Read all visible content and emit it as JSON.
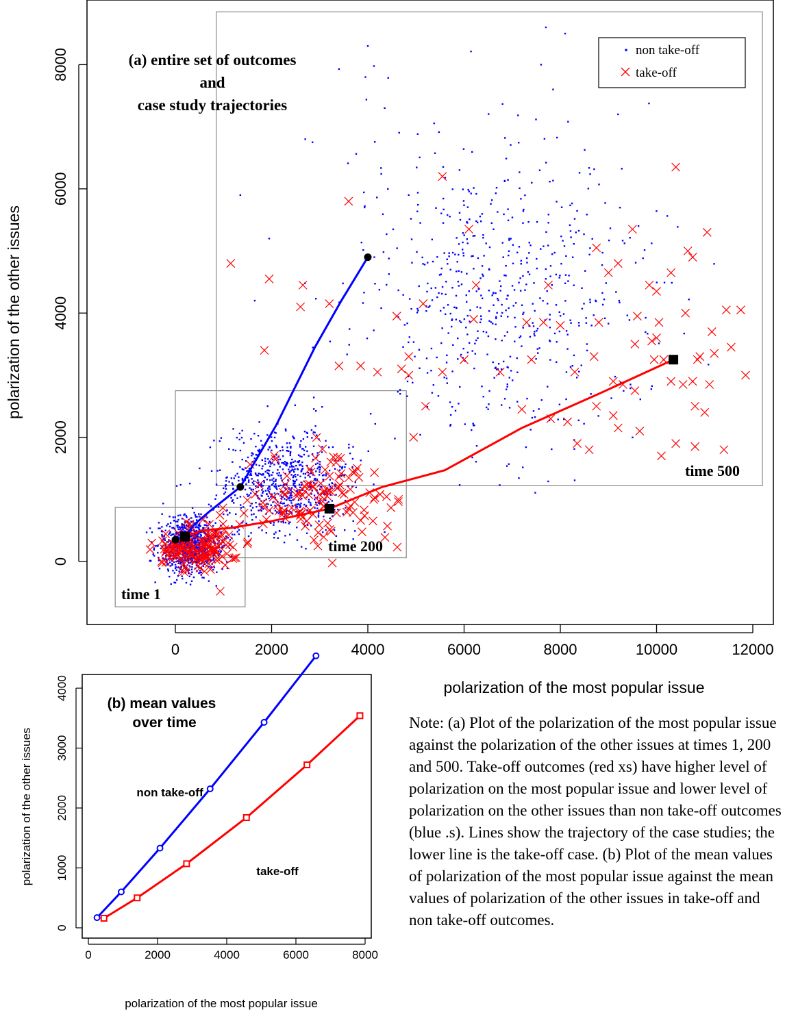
{
  "chart_data": [
    {
      "type": "scatter",
      "title": "(a) entire set of outcomes and case study trajectories",
      "title_lines": [
        "(a) entire set of outcomes",
        "and",
        "case study trajectories"
      ],
      "xlabel": "polarization of the most popular issue",
      "ylabel": "polarization of the other issues",
      "xlim": [
        -1800,
        12500
      ],
      "ylim": [
        -1000,
        8700
      ],
      "xticks": [
        0,
        2000,
        4000,
        6000,
        8000,
        10000,
        12000
      ],
      "yticks": [
        0,
        2000,
        4000,
        6000,
        8000
      ],
      "legend": {
        "placement": "top-right",
        "entries": [
          {
            "label": "non take-off",
            "marker": "dot",
            "color": "#0000ff"
          },
          {
            "label": "take-off",
            "marker": "x",
            "color": "#ff0000"
          }
        ]
      },
      "regions": [
        {
          "label": "time 1",
          "x": [
            -1250,
            1450
          ],
          "y": [
            -730,
            870
          ]
        },
        {
          "label": "time 200",
          "x": [
            0,
            4800
          ],
          "y": [
            60,
            2750
          ]
        },
        {
          "label": "time 500",
          "x": [
            850,
            12200
          ],
          "y": [
            1220,
            8850
          ]
        }
      ],
      "series": [
        {
          "name": "non take-off",
          "marker": "dot",
          "color": "#0000ff",
          "clusters": [
            {
              "time": "1",
              "cx": 300,
              "cy": 250,
              "sx": 320,
              "sy": 220,
              "n": 900
            },
            {
              "time": "200",
              "cx": 2300,
              "cy": 1250,
              "sx": 700,
              "sy": 420,
              "n": 700
            },
            {
              "time": "500",
              "cx": 6800,
              "cy": 4300,
              "sx": 1500,
              "sy": 1200,
              "n": 620
            }
          ],
          "outliers": [
            [
              7700,
              8600
            ],
            [
              8100,
              8500
            ],
            [
              4000,
              8300
            ],
            [
              3950,
              7800
            ],
            [
              7600,
              8000
            ],
            [
              7850,
              7600
            ],
            [
              4350,
              7300
            ],
            [
              9200,
              7200
            ],
            [
              1350,
              5900
            ],
            [
              2700,
              6800
            ],
            [
              2850,
              6750
            ],
            [
              1950,
              5200
            ],
            [
              1650,
              4200
            ],
            [
              4850,
              5900
            ],
            [
              8650,
              3800
            ]
          ]
        },
        {
          "name": "take-off",
          "marker": "x",
          "color": "#ff0000",
          "clusters": [
            {
              "time": "1",
              "cx": 450,
              "cy": 230,
              "sx": 380,
              "sy": 200,
              "n": 140
            },
            {
              "time": "200",
              "cx": 3100,
              "cy": 1000,
              "sx": 850,
              "sy": 380,
              "n": 120
            }
          ],
          "points_time500": [
            [
              10400,
              6350
            ],
            [
              5550,
              6200
            ],
            [
              3600,
              5800
            ],
            [
              6100,
              5350
            ],
            [
              9500,
              5350
            ],
            [
              11050,
              5300
            ],
            [
              10650,
              5000
            ],
            [
              10750,
              4900
            ],
            [
              8750,
              5050
            ],
            [
              1150,
              4800
            ],
            [
              9200,
              4800
            ],
            [
              9000,
              4650
            ],
            [
              10300,
              4650
            ],
            [
              1950,
              4550
            ],
            [
              2650,
              4450
            ],
            [
              6250,
              4450
            ],
            [
              7750,
              4450
            ],
            [
              9850,
              4450
            ],
            [
              10000,
              4350
            ],
            [
              3200,
              4150
            ],
            [
              5150,
              4150
            ],
            [
              2600,
              4100
            ],
            [
              11450,
              4050
            ],
            [
              11750,
              4050
            ],
            [
              10600,
              4000
            ],
            [
              9600,
              3950
            ],
            [
              10050,
              3850
            ],
            [
              6200,
              3900
            ],
            [
              4600,
              3950
            ],
            [
              7300,
              3850
            ],
            [
              7650,
              3850
            ],
            [
              8000,
              3800
            ],
            [
              8800,
              3850
            ],
            [
              11150,
              3700
            ],
            [
              9900,
              3550
            ],
            [
              10000,
              3600
            ],
            [
              9550,
              3500
            ],
            [
              11550,
              3450
            ],
            [
              8700,
              3300
            ],
            [
              10900,
              3300
            ],
            [
              11200,
              3350
            ],
            [
              1850,
              3400
            ],
            [
              4850,
              3300
            ],
            [
              7400,
              3250
            ],
            [
              9950,
              3250
            ],
            [
              10150,
              3250
            ],
            [
              6000,
              3250
            ],
            [
              3850,
              3150
            ],
            [
              4700,
              3100
            ],
            [
              10850,
              3250
            ],
            [
              3400,
              3150
            ],
            [
              8300,
              3050
            ],
            [
              10750,
              2900
            ],
            [
              4200,
              3050
            ],
            [
              5550,
              3050
            ],
            [
              6750,
              3050
            ],
            [
              4850,
              3000
            ],
            [
              9100,
              2900
            ],
            [
              9300,
              2850
            ],
            [
              10550,
              2850
            ],
            [
              10300,
              2900
            ],
            [
              11100,
              2850
            ],
            [
              11850,
              3000
            ],
            [
              9550,
              2750
            ],
            [
              8750,
              2500
            ],
            [
              10800,
              2500
            ],
            [
              7200,
              2450
            ],
            [
              9100,
              2350
            ],
            [
              11000,
              2400
            ],
            [
              7800,
              2300
            ],
            [
              8150,
              2250
            ],
            [
              9200,
              2150
            ],
            [
              9650,
              2100
            ],
            [
              4950,
              2000
            ],
            [
              8350,
              1900
            ],
            [
              10400,
              1900
            ],
            [
              10800,
              1850
            ],
            [
              11400,
              1800
            ],
            [
              8600,
              1800
            ],
            [
              10100,
              1700
            ],
            [
              5200,
              2500
            ]
          ]
        }
      ],
      "trajectories": [
        {
          "name": "non take-off",
          "color": "#0000ff",
          "points": [
            [
              0,
              350
            ],
            [
              200,
              400
            ],
            [
              400,
              600
            ],
            [
              700,
              800
            ],
            [
              1350,
              1200
            ],
            [
              2100,
              2200
            ],
            [
              2900,
              3450
            ],
            [
              3450,
              4200
            ],
            [
              4000,
              4900
            ]
          ],
          "markers": [
            [
              0,
              350
            ],
            [
              200,
              400
            ],
            [
              1350,
              1200
            ],
            [
              4000,
              4900
            ]
          ]
        },
        {
          "name": "take-off",
          "color": "#ff0000",
          "points": [
            [
              200,
              400
            ],
            [
              550,
              500
            ],
            [
              1150,
              540
            ],
            [
              2000,
              650
            ],
            [
              3200,
              850
            ],
            [
              4300,
              1200
            ],
            [
              5600,
              1470
            ],
            [
              7200,
              2150
            ],
            [
              8800,
              2700
            ],
            [
              10350,
              3250
            ]
          ],
          "markers": [
            [
              200,
              400
            ],
            [
              3200,
              850
            ],
            [
              10350,
              3250
            ]
          ]
        }
      ]
    },
    {
      "type": "line",
      "title": "(b) mean values over time",
      "title_lines": [
        "(b) mean values",
        "over time"
      ],
      "xlabel": "polarization of the most popular issue",
      "ylabel": "polarization of the other issues",
      "xlim": [
        0,
        8300
      ],
      "ylim": [
        -200,
        4650
      ],
      "xticks": [
        0,
        2000,
        4000,
        6000,
        8000
      ],
      "yticks": [
        0,
        1000,
        2000,
        3000,
        4000
      ],
      "series": [
        {
          "name": "non take-off",
          "color": "#0000ff",
          "marker": "circle",
          "x": [
            250,
            950,
            2070,
            3520,
            5080,
            6580
          ],
          "y": [
            170,
            600,
            1330,
            2320,
            3430,
            4540
          ]
        },
        {
          "name": "take-off",
          "color": "#ff0000",
          "marker": "square",
          "x": [
            450,
            1410,
            2840,
            4570,
            6320,
            7850
          ],
          "y": [
            160,
            500,
            1070,
            1840,
            2720,
            3540
          ]
        }
      ]
    }
  ],
  "note": "Note: (a) Plot of the polarization of the most popular issue against the polarization of the other issues at times 1, 200 and 500. Take-off outcomes (red xs) have higher level of polarization on the most popular issue and lower level of polarization on the other issues than non take-off outcomes (blue .s). Lines show the trajectory of the case studies; the lower line is the take-off case. (b) Plot of the mean values of polarization of the most popular issue against the mean values of polarization of the other issues in take-off and non take-off outcomes."
}
